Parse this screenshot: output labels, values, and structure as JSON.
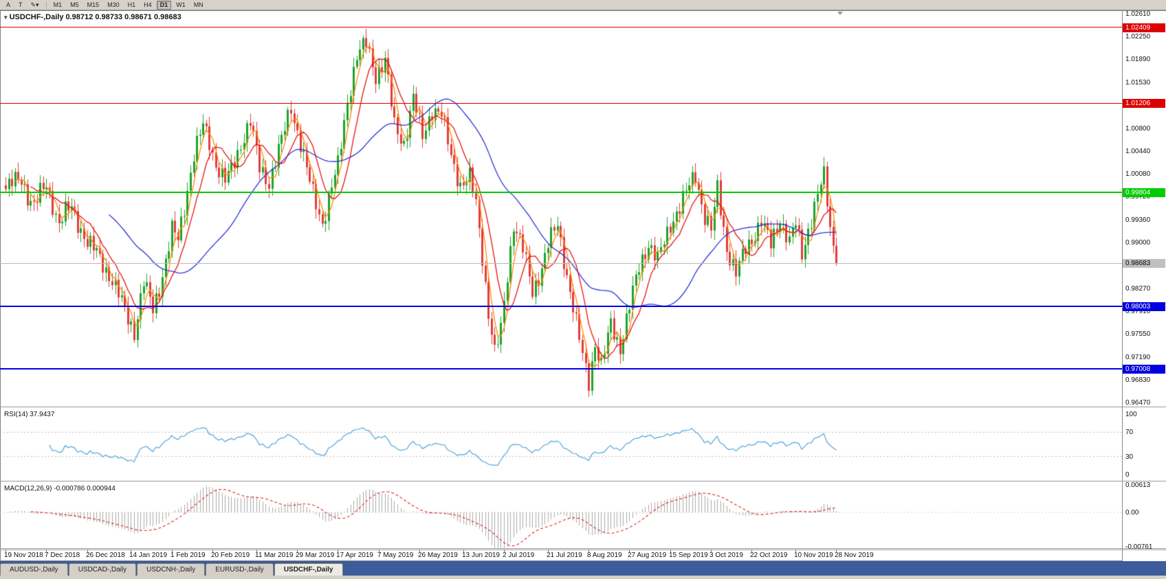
{
  "toolbar": {
    "tools": [
      {
        "label": "A",
        "name": "cursor-tool-button"
      },
      {
        "label": "T",
        "name": "text-tool-button"
      },
      {
        "label": "✎▾",
        "name": "draw-tool-button"
      }
    ],
    "timeframes": [
      "M1",
      "M5",
      "M15",
      "M30",
      "H1",
      "H4",
      "D1",
      "W1",
      "MN"
    ],
    "active_timeframe": "D1"
  },
  "chart": {
    "marker": "▾",
    "title_symbol": "USDCHF-,Daily",
    "ohlc": "0.98712 0.98733 0.98671 0.98683"
  },
  "chart_data": {
    "type": "candlestick",
    "symbol": "USDCHF",
    "timeframe": "Daily",
    "quote": {
      "open": "0.98712",
      "high": "0.98733",
      "low": "0.98671",
      "close": "0.98683"
    },
    "y_axis_ticks": [
      "1.02610",
      "1.02250",
      "1.01890",
      "1.01530",
      "1.00800",
      "1.00440",
      "1.00080",
      "0.99720",
      "0.99360",
      "0.99000",
      "0.98270",
      "0.97910",
      "0.97550",
      "0.97190",
      "0.96830",
      "0.96470"
    ],
    "levels": [
      {
        "label": "1.02409",
        "price": 1.02409,
        "color": "#dd0000",
        "thickness": 1,
        "role": "resistance"
      },
      {
        "label": "1.01206",
        "price": 1.01206,
        "color": "#dd0000",
        "thickness": 1,
        "role": "resistance"
      },
      {
        "label": "0.99804",
        "price": 0.99804,
        "color": "#00cc00",
        "thickness": 2,
        "role": "pivot"
      },
      {
        "label": "0.98003",
        "price": 0.98003,
        "color": "#0000e0",
        "thickness": 2,
        "role": "support"
      },
      {
        "label": "0.97008",
        "price": 0.97008,
        "color": "#0000e0",
        "thickness": 2,
        "role": "support"
      }
    ],
    "current_price": {
      "label": "0.98683",
      "price": 0.98683,
      "badge_bg": "#c0c0c0",
      "badge_fg": "#000000",
      "line_color": "#b8b8b8"
    },
    "num_candles": 266,
    "last_close": 0.98683,
    "close_anchors": [
      [
        0,
        0.9985
      ],
      [
        3,
        0.9998
      ],
      [
        5,
        1.0002
      ],
      [
        7,
        0.9975
      ],
      [
        9,
        0.9958
      ],
      [
        11,
        0.9978
      ],
      [
        13,
        0.9992
      ],
      [
        15,
        0.9962
      ],
      [
        17,
        0.993
      ],
      [
        19,
        0.9948
      ],
      [
        21,
        0.9956
      ],
      [
        24,
        0.9922
      ],
      [
        26,
        0.99
      ],
      [
        29,
        0.9885
      ],
      [
        31,
        0.9868
      ],
      [
        34,
        0.984
      ],
      [
        36,
        0.9818
      ],
      [
        39,
        0.9782
      ],
      [
        41,
        0.976
      ],
      [
        44,
        0.9838
      ],
      [
        47,
        0.9795
      ],
      [
        49,
        0.983
      ],
      [
        51,
        0.9872
      ],
      [
        53,
        0.992
      ],
      [
        55,
        0.9905
      ],
      [
        57,
        0.9958
      ],
      [
        60,
        1.004
      ],
      [
        63,
        1.0085
      ],
      [
        65,
        1.006
      ],
      [
        67,
        1.0025
      ],
      [
        70,
        0.9998
      ],
      [
        72,
        1.0015
      ],
      [
        74,
        1.0042
      ],
      [
        76,
        1.007
      ],
      [
        78,
        1.0092
      ],
      [
        81,
        1.0018
      ],
      [
        84,
        0.9996
      ],
      [
        86,
        1.003
      ],
      [
        88,
        1.0062
      ],
      [
        91,
        1.0115
      ],
      [
        94,
        1.0058
      ],
      [
        96,
        1.0015
      ],
      [
        98,
        0.9978
      ],
      [
        101,
        0.9932
      ],
      [
        104,
        0.9988
      ],
      [
        106,
        1.0022
      ],
      [
        109,
        1.0125
      ],
      [
        112,
        1.0195
      ],
      [
        115,
        1.0215
      ],
      [
        118,
        1.0165
      ],
      [
        121,
        1.0188
      ],
      [
        124,
        1.0085
      ],
      [
        127,
        1.0058
      ],
      [
        130,
        1.0128
      ],
      [
        133,
        1.0068
      ],
      [
        136,
        1.0112
      ],
      [
        139,
        1.0102
      ],
      [
        142,
        1.0038
      ],
      [
        145,
        0.9992
      ],
      [
        148,
        1.0002
      ],
      [
        150,
        0.9962
      ],
      [
        152,
        0.988
      ],
      [
        154,
        0.979
      ],
      [
        156,
        0.9725
      ],
      [
        158,
        0.9762
      ],
      [
        160,
        0.985
      ],
      [
        162,
        0.9932
      ],
      [
        165,
        0.989
      ],
      [
        168,
        0.9822
      ],
      [
        171,
        0.9862
      ],
      [
        173,
        0.9898
      ],
      [
        176,
        0.9928
      ],
      [
        179,
        0.985
      ],
      [
        182,
        0.9772
      ],
      [
        184,
        0.9722
      ],
      [
        186,
        0.9682
      ],
      [
        188,
        0.9742
      ],
      [
        190,
        0.9705
      ],
      [
        193,
        0.9772
      ],
      [
        196,
        0.9735
      ],
      [
        199,
        0.98
      ],
      [
        202,
        0.9862
      ],
      [
        205,
        0.99
      ],
      [
        208,
        0.9872
      ],
      [
        212,
        0.993
      ],
      [
        215,
        0.9958
      ],
      [
        218,
        0.999
      ],
      [
        220,
        1.0008
      ],
      [
        223,
        0.9942
      ],
      [
        225,
        0.992
      ],
      [
        227,
        0.9985
      ],
      [
        230,
        0.9892
      ],
      [
        233,
        0.9852
      ],
      [
        236,
        0.989
      ],
      [
        238,
        0.9906
      ],
      [
        241,
        0.9936
      ],
      [
        244,
        0.9896
      ],
      [
        247,
        0.994
      ],
      [
        250,
        0.9902
      ],
      [
        252,
        0.993
      ],
      [
        254,
        0.9882
      ],
      [
        256,
        0.9922
      ],
      [
        258,
        0.9958
      ],
      [
        260,
        0.9992
      ],
      [
        261,
        1.0004
      ],
      [
        263,
        0.9925
      ],
      [
        265,
        0.98683
      ]
    ],
    "wiggle": {
      "a1": 0.0011,
      "f1": 2.39,
      "a2": 0.0007,
      "f2": 0.73,
      "wick": 0.0011,
      "wick_base": 0.0004
    },
    "candle_colors": {
      "up": "#1ca32a",
      "down": "#e23b3b"
    },
    "moving_averages": [
      {
        "period": 4,
        "color": "#ff8a00",
        "name": "ma-fast-orange"
      },
      {
        "period": 9,
        "color": "#e81010",
        "name": "ma-medium-red"
      },
      {
        "period": 34,
        "color": "#2b32d6",
        "name": "ma-slow-blue"
      }
    ],
    "x_labels": [
      [
        0,
        "19 Nov 2018"
      ],
      [
        13,
        "7 Dec 2018"
      ],
      [
        26,
        "26 Dec 2018"
      ],
      [
        40,
        "14 Jan 2019"
      ],
      [
        53,
        "1 Feb 2019"
      ],
      [
        66,
        "20 Feb 2019"
      ],
      [
        80,
        "11 Mar 2019"
      ],
      [
        93,
        "29 Mar 2019"
      ],
      [
        106,
        "17 Apr 2019"
      ],
      [
        119,
        "7 May 2019"
      ],
      [
        132,
        "26 May 2019"
      ],
      [
        146,
        "13 Jun 2019"
      ],
      [
        159,
        "2 Jul 2019"
      ],
      [
        173,
        "21 Jul 2019"
      ],
      [
        186,
        "8 Aug 2019"
      ],
      [
        199,
        "27 Aug 2019"
      ],
      [
        212,
        "15 Sep 2019"
      ],
      [
        225,
        "3 Oct 2019"
      ],
      [
        238,
        "22 Oct 2019"
      ],
      [
        252,
        "10 Nov 2019"
      ],
      [
        265,
        "28 Nov 2019"
      ]
    ],
    "indicators": {
      "rsi": {
        "label": "RSI(14)",
        "value": "37.9437",
        "period": 14,
        "color": "#4fa3d8",
        "axis_ticks": [
          "100",
          "70",
          "30",
          "0"
        ],
        "levels": [
          70,
          30
        ],
        "level_color": "#b8b8b8"
      },
      "macd": {
        "label": "MACD(12,26,9)",
        "values": "-0.000786 0.000944",
        "fast": 12,
        "slow": 26,
        "signal": 9,
        "axis_ticks": [
          "0.00613",
          "0.00",
          "-0.00761"
        ],
        "hist_color": "#a8a8a8",
        "signal_color": "#dd2222"
      }
    }
  },
  "tabs": {
    "items": [
      "AUDUSD-,Daily",
      "USDCAD-,Daily",
      "USDCNH-,Daily",
      "EURUSD-,Daily",
      "USDCHF-,Daily"
    ],
    "active": "USDCHF-,Daily"
  }
}
